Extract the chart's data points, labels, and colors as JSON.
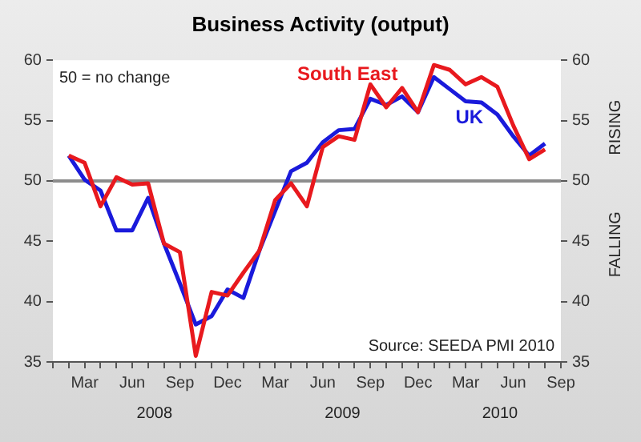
{
  "chart_data": {
    "type": "line",
    "title": "Business Activity (output)",
    "x": [
      "2008-02",
      "2008-03",
      "2008-04",
      "2008-05",
      "2008-06",
      "2008-07",
      "2008-08",
      "2008-09",
      "2008-10",
      "2008-11",
      "2008-12",
      "2009-01",
      "2009-02",
      "2009-03",
      "2009-04",
      "2009-05",
      "2009-06",
      "2009-07",
      "2009-08",
      "2009-09",
      "2009-10",
      "2009-11",
      "2009-12",
      "2010-01",
      "2010-02",
      "2010-03",
      "2010-04",
      "2010-05",
      "2010-06",
      "2010-07",
      "2010-08"
    ],
    "series": [
      {
        "name": "South East",
        "color": "#e8191e",
        "values": [
          52.1,
          51.5,
          47.9,
          50.3,
          49.7,
          49.8,
          44.8,
          44.1,
          35.5,
          40.8,
          40.5,
          42.4,
          44.2,
          48.4,
          49.8,
          47.9,
          52.8,
          53.7,
          53.4,
          58.0,
          56.1,
          57.7,
          55.7,
          59.6,
          59.2,
          58.0,
          58.6,
          57.8,
          54.6,
          51.8,
          52.6
        ]
      },
      {
        "name": "UK",
        "color": "#1a1adb",
        "values": [
          52.1,
          50.1,
          49.2,
          45.9,
          45.9,
          48.6,
          44.8,
          41.5,
          38.1,
          38.8,
          41.0,
          40.3,
          44.2,
          47.5,
          50.8,
          51.5,
          53.2,
          54.2,
          54.3,
          56.8,
          56.3,
          57.0,
          55.7,
          58.6,
          57.6,
          56.6,
          56.5,
          55.5,
          53.7,
          52.1,
          53.1
        ]
      }
    ],
    "xlim": [
      "2008-01",
      "2010-09"
    ],
    "xticks": [
      {
        "value": "2008-01",
        "label": null
      },
      {
        "value": "2008-02",
        "label": null
      },
      {
        "value": "2008-03",
        "label": "Mar"
      },
      {
        "value": "2008-04",
        "label": null
      },
      {
        "value": "2008-05",
        "label": null
      },
      {
        "value": "2008-06",
        "label": "Jun"
      },
      {
        "value": "2008-07",
        "label": null
      },
      {
        "value": "2008-08",
        "label": null
      },
      {
        "value": "2008-09",
        "label": "Sep"
      },
      {
        "value": "2008-10",
        "label": null
      },
      {
        "value": "2008-11",
        "label": null
      },
      {
        "value": "2008-12",
        "label": "Dec"
      },
      {
        "value": "2009-01",
        "label": null
      },
      {
        "value": "2009-02",
        "label": null
      },
      {
        "value": "2009-03",
        "label": "Mar"
      },
      {
        "value": "2009-04",
        "label": null
      },
      {
        "value": "2009-05",
        "label": null
      },
      {
        "value": "2009-06",
        "label": "Jun"
      },
      {
        "value": "2009-07",
        "label": null
      },
      {
        "value": "2009-08",
        "label": null
      },
      {
        "value": "2009-09",
        "label": "Sep"
      },
      {
        "value": "2009-10",
        "label": null
      },
      {
        "value": "2009-11",
        "label": null
      },
      {
        "value": "2009-12",
        "label": "Dec"
      },
      {
        "value": "2010-01",
        "label": null
      },
      {
        "value": "2010-02",
        "label": null
      },
      {
        "value": "2010-03",
        "label": "Mar"
      },
      {
        "value": "2010-04",
        "label": null
      },
      {
        "value": "2010-05",
        "label": null
      },
      {
        "value": "2010-06",
        "label": "Jun"
      },
      {
        "value": "2010-07",
        "label": null
      },
      {
        "value": "2010-08",
        "label": null
      },
      {
        "value": "2010-09",
        "label": "Sep"
      }
    ],
    "ylim": [
      35,
      60
    ],
    "yticks": [
      35,
      40,
      45,
      50,
      55,
      60
    ],
    "y2lim": [
      35,
      60
    ],
    "y2ticks": [
      35,
      40,
      45,
      50,
      55,
      60
    ],
    "ref_lines": [
      {
        "axis": "y",
        "value": 50,
        "color": "#8c8c8c"
      }
    ],
    "annotations": [
      "2008",
      "2009",
      "2010",
      "RISING",
      "FALLING",
      "Source: SEEDA PMI 2010",
      "50 = no change"
    ],
    "grid": false,
    "legend": false,
    "marker": "none",
    "line_style": "solid"
  }
}
